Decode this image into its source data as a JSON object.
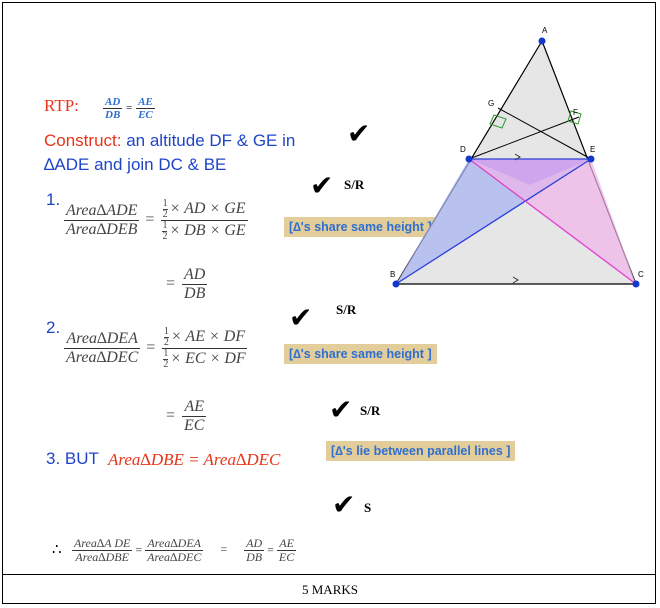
{
  "rtp": {
    "label": "RTP:",
    "lhs_num": "AD",
    "lhs_den": "DB",
    "eq": "=",
    "rhs_num": "AE",
    "rhs_den": "EC"
  },
  "construct": {
    "label": "Construct:",
    "text1": " an altitude DF & GE in",
    "text2": "∆ADE and join DC & BE"
  },
  "step1": {
    "num": "1.",
    "lhs_num": "Area∆ADE",
    "lhs_den": "Area∆DEB",
    "rhs_num": "× AD × GE",
    "rhs_den": "× DB × GE",
    "res_num": "AD",
    "res_den": "DB",
    "reason": "[∆'s share same height ]"
  },
  "step2": {
    "num": "2.",
    "lhs_num": "Area∆DEA",
    "lhs_den": "Area∆DEC",
    "rhs_num": "× AE × DF",
    "rhs_den": "× EC × DF",
    "res_num": "AE",
    "res_den": "EC",
    "reason": "[∆'s share same height ]"
  },
  "step3": {
    "prefix": "3. BUT",
    "expr": "Area∆DBE = Area∆DEC",
    "reason": "[∆'s lie between parallel lines ]"
  },
  "conclusion": {
    "therefore": "∴",
    "f1_num": "Area∆A DE",
    "f1_den": "Area∆DBE",
    "f2_num": "Area∆DEA",
    "f2_den": "Area∆DEC",
    "f3_num": "AD",
    "f3_den": "DB",
    "f4_num": "AE",
    "f4_den": "EC"
  },
  "half": {
    "num": "1",
    "den": "2"
  },
  "eq_sign": "=",
  "marks": {
    "tick": "✔",
    "sr1": "S/R",
    "sr2": "S/R",
    "sr3": "S/R",
    "s": "S"
  },
  "footer": "5 MARKS",
  "diagram": {
    "labels": {
      "A": "A",
      "B": "B",
      "C": "C",
      "D": "D",
      "E": "E",
      "F": "F",
      "G": "G"
    },
    "colors": {
      "outer_fill": "#e6e6e6",
      "blue_fill": "#a9b5f0",
      "pink_fill": "#f0b3ea",
      "purple_fill": "#c79ef0",
      "point": "#1238cc",
      "pink_line": "#e040c8",
      "blue_line": "#2a40d8",
      "right_angle": "#2e9a2e"
    }
  }
}
